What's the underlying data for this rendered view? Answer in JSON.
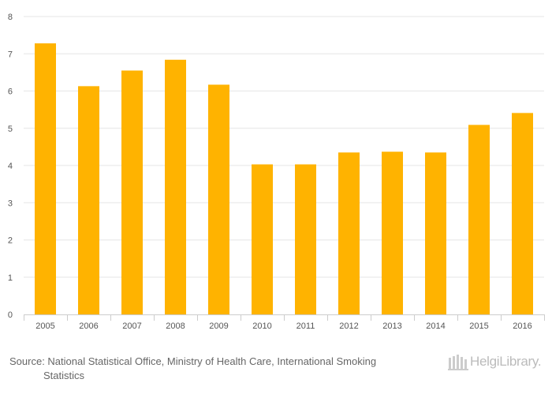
{
  "chart_data": {
    "type": "bar",
    "categories": [
      "2005",
      "2006",
      "2007",
      "2008",
      "2009",
      "2010",
      "2011",
      "2012",
      "2013",
      "2014",
      "2015",
      "2016"
    ],
    "values": [
      7.28,
      6.13,
      6.55,
      6.84,
      6.17,
      4.03,
      4.03,
      4.35,
      4.37,
      4.35,
      5.09,
      5.41
    ],
    "ylim": [
      0,
      8
    ],
    "yticks": [
      0,
      1,
      2,
      3,
      4,
      5,
      6,
      7,
      8
    ],
    "grid": true,
    "bar_color": "#FFB300",
    "grid_color": "#e6e6e6",
    "title": "",
    "xlabel": "",
    "ylabel": ""
  },
  "footer": {
    "source_line1": "Source: National Statistical Office, Ministry of Health Care, International Smoking",
    "source_line2": "Statistics",
    "brand": "HelgiLibrary."
  }
}
